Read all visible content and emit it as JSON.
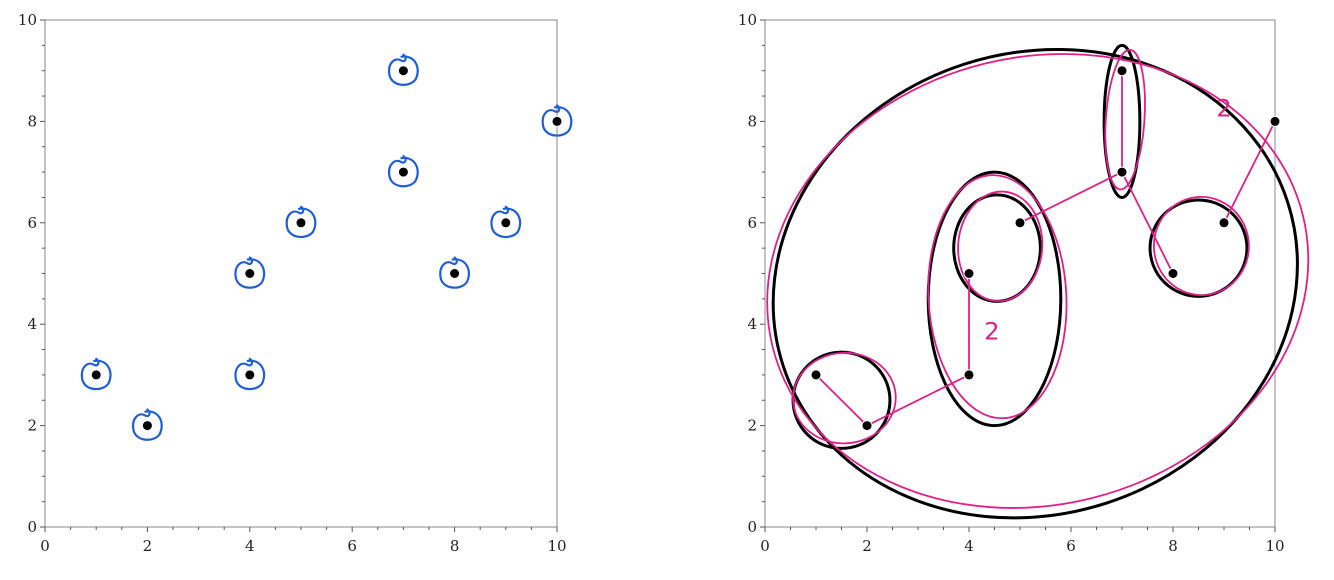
{
  "chart_data": [
    {
      "type": "scatter",
      "panel": "left",
      "points": [
        {
          "x": 1,
          "y": 3
        },
        {
          "x": 2,
          "y": 2
        },
        {
          "x": 4,
          "y": 3
        },
        {
          "x": 4,
          "y": 5
        },
        {
          "x": 5,
          "y": 6
        },
        {
          "x": 7,
          "y": 7
        },
        {
          "x": 7,
          "y": 9
        },
        {
          "x": 8,
          "y": 5
        },
        {
          "x": 9,
          "y": 6
        },
        {
          "x": 10,
          "y": 8
        }
      ],
      "xlim": [
        0,
        10
      ],
      "ylim": [
        0,
        10
      ],
      "x_ticks": [
        "0",
        "2",
        "4",
        "6",
        "8",
        "10"
      ],
      "y_ticks": [
        "0",
        "2",
        "4",
        "6",
        "8",
        "10"
      ],
      "title": "",
      "xlabel": "",
      "ylabel": "",
      "annotations": {
        "style": "blue hand-drawn circle around each point",
        "color": "#1f5fd6"
      }
    },
    {
      "type": "scatter",
      "panel": "right",
      "points": [
        {
          "x": 1,
          "y": 3
        },
        {
          "x": 2,
          "y": 2
        },
        {
          "x": 4,
          "y": 3
        },
        {
          "x": 4,
          "y": 5
        },
        {
          "x": 5,
          "y": 6
        },
        {
          "x": 7,
          "y": 7
        },
        {
          "x": 7,
          "y": 9
        },
        {
          "x": 8,
          "y": 5
        },
        {
          "x": 9,
          "y": 6
        },
        {
          "x": 10,
          "y": 8
        }
      ],
      "xlim": [
        0,
        10
      ],
      "ylim": [
        0,
        10
      ],
      "x_ticks": [
        "0",
        "2",
        "4",
        "6",
        "8",
        "10"
      ],
      "y_ticks": [
        "0",
        "2",
        "4",
        "6",
        "8",
        "10"
      ],
      "title": "",
      "xlabel": "",
      "ylabel": "",
      "clusters": [
        {
          "cx": 1.5,
          "cy": 2.5,
          "rx": 0.95,
          "ry": 0.95
        },
        {
          "cx": 4.55,
          "cy": 5.5,
          "rx": 0.85,
          "ry": 1.05
        },
        {
          "cx": 4.5,
          "cy": 4.5,
          "rx": 1.3,
          "ry": 2.5
        },
        {
          "cx": 7.0,
          "cy": 8.0,
          "rx": 0.35,
          "ry": 1.5
        },
        {
          "cx": 8.5,
          "cy": 5.5,
          "rx": 0.95,
          "ry": 0.95
        },
        {
          "cx": 5.3,
          "cy": 4.8,
          "rx": 5.2,
          "ry": 4.55,
          "rotate": -18
        }
      ],
      "links": [
        [
          {
            "x": 1,
            "y": 3
          },
          {
            "x": 2,
            "y": 2
          }
        ],
        [
          {
            "x": 2,
            "y": 2
          },
          {
            "x": 4,
            "y": 3
          }
        ],
        [
          {
            "x": 4,
            "y": 3
          },
          {
            "x": 4,
            "y": 5
          }
        ],
        [
          {
            "x": 5,
            "y": 6
          },
          {
            "x": 7,
            "y": 7
          }
        ],
        [
          {
            "x": 7,
            "y": 7
          },
          {
            "x": 7,
            "y": 9
          }
        ],
        [
          {
            "x": 7,
            "y": 7
          },
          {
            "x": 8,
            "y": 5
          }
        ],
        [
          {
            "x": 9,
            "y": 6
          },
          {
            "x": 10,
            "y": 8
          }
        ]
      ],
      "labels": [
        {
          "text": "2",
          "x": 8.85,
          "y": 8.1
        },
        {
          "text": "2",
          "x": 4.3,
          "y": 3.7
        }
      ],
      "annotation_color": "#e0208a"
    }
  ]
}
